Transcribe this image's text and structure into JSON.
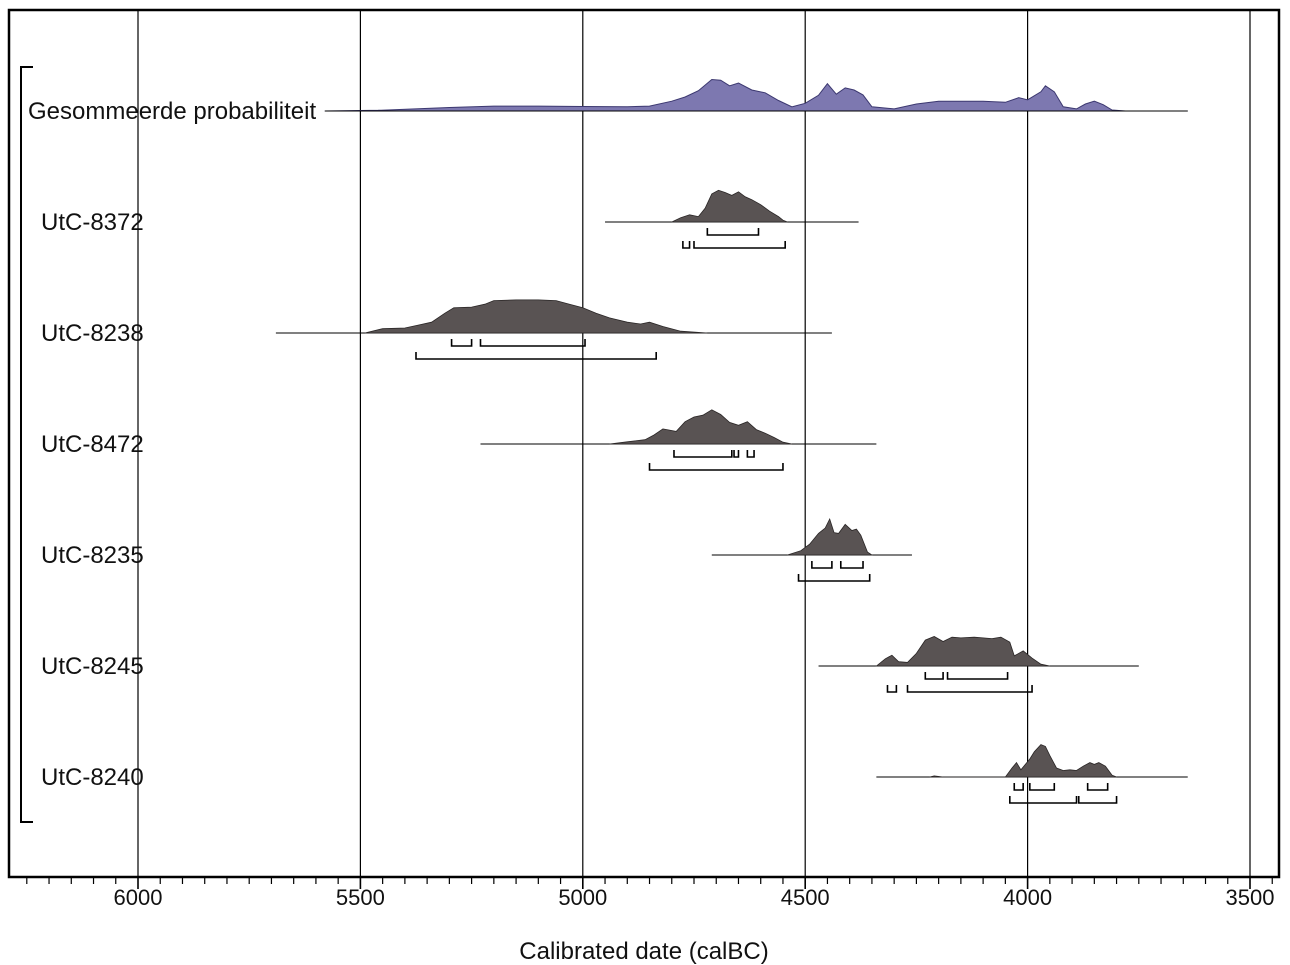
{
  "chart_data": {
    "type": "area",
    "title": "",
    "xlabel": "Calibrated date (calBC)",
    "ylabel": "",
    "x_axis": {
      "reversed": true,
      "min_calBC": 6290,
      "max_calBC": 3430,
      "major_ticks": [
        6000,
        5500,
        5000,
        4500,
        4000,
        3500
      ],
      "minor_tick_step": 50,
      "vertical_gridlines_at": [
        6000,
        5500,
        5000,
        4500,
        4000,
        3500
      ]
    },
    "sum": {
      "name": "Gesommeerde probabiliteit",
      "color": "#7d78b0",
      "stroke": "#3c3870",
      "baseline_range": [
        5580,
        3640
      ],
      "density": [
        [
          5580,
          0
        ],
        [
          5460,
          0.02
        ],
        [
          5300,
          0.1
        ],
        [
          5200,
          0.14
        ],
        [
          5100,
          0.14
        ],
        [
          5000,
          0.13
        ],
        [
          4900,
          0.12
        ],
        [
          4850,
          0.14
        ],
        [
          4800,
          0.28
        ],
        [
          4770,
          0.4
        ],
        [
          4740,
          0.58
        ],
        [
          4710,
          0.9
        ],
        [
          4690,
          0.88
        ],
        [
          4670,
          0.72
        ],
        [
          4650,
          0.8
        ],
        [
          4620,
          0.6
        ],
        [
          4590,
          0.52
        ],
        [
          4560,
          0.3
        ],
        [
          4530,
          0.12
        ],
        [
          4500,
          0.22
        ],
        [
          4470,
          0.45
        ],
        [
          4450,
          0.78
        ],
        [
          4430,
          0.48
        ],
        [
          4410,
          0.66
        ],
        [
          4390,
          0.6
        ],
        [
          4370,
          0.46
        ],
        [
          4350,
          0.12
        ],
        [
          4300,
          0.06
        ],
        [
          4250,
          0.2
        ],
        [
          4200,
          0.28
        ],
        [
          4100,
          0.28
        ],
        [
          4050,
          0.25
        ],
        [
          4020,
          0.38
        ],
        [
          4000,
          0.32
        ],
        [
          3970,
          0.55
        ],
        [
          3960,
          0.72
        ],
        [
          3940,
          0.55
        ],
        [
          3920,
          0.12
        ],
        [
          3890,
          0.06
        ],
        [
          3870,
          0.2
        ],
        [
          3850,
          0.28
        ],
        [
          3830,
          0.18
        ],
        [
          3810,
          0.03
        ],
        [
          3780,
          0
        ],
        [
          3640,
          0
        ]
      ]
    },
    "samples": [
      {
        "name": "UtC-8372",
        "color": "#595353",
        "baseline_range": [
          4950,
          4380
        ],
        "density": [
          [
            4800,
            0
          ],
          [
            4780,
            0.12
          ],
          [
            4760,
            0.2
          ],
          [
            4740,
            0.15
          ],
          [
            4725,
            0.38
          ],
          [
            4710,
            0.78
          ],
          [
            4695,
            0.88
          ],
          [
            4680,
            0.82
          ],
          [
            4665,
            0.74
          ],
          [
            4650,
            0.84
          ],
          [
            4635,
            0.7
          ],
          [
            4620,
            0.62
          ],
          [
            4600,
            0.48
          ],
          [
            4580,
            0.3
          ],
          [
            4560,
            0.15
          ],
          [
            4550,
            0.05
          ],
          [
            4540,
            0
          ]
        ],
        "sigma1_ranges": [
          [
            4720,
            4605
          ]
        ],
        "sigma2_ranges": [
          [
            4775,
            4760
          ],
          [
            4750,
            4545
          ]
        ]
      },
      {
        "name": "UtC-8238",
        "color": "#595353",
        "baseline_range": [
          5690,
          4440
        ],
        "density": [
          [
            5490,
            0
          ],
          [
            5450,
            0.12
          ],
          [
            5400,
            0.14
          ],
          [
            5370,
            0.22
          ],
          [
            5340,
            0.3
          ],
          [
            5310,
            0.55
          ],
          [
            5290,
            0.7
          ],
          [
            5250,
            0.72
          ],
          [
            5220,
            0.8
          ],
          [
            5200,
            0.9
          ],
          [
            5150,
            0.92
          ],
          [
            5100,
            0.92
          ],
          [
            5060,
            0.9
          ],
          [
            5030,
            0.8
          ],
          [
            5000,
            0.7
          ],
          [
            4970,
            0.55
          ],
          [
            4940,
            0.42
          ],
          [
            4900,
            0.3
          ],
          [
            4870,
            0.25
          ],
          [
            4850,
            0.3
          ],
          [
            4820,
            0.18
          ],
          [
            4780,
            0.05
          ],
          [
            4720,
            0
          ]
        ],
        "sigma1_ranges": [
          [
            5295,
            5250
          ],
          [
            5230,
            4995
          ]
        ],
        "sigma2_ranges": [
          [
            5375,
            4835
          ]
        ]
      },
      {
        "name": "UtC-8472",
        "color": "#595353",
        "baseline_range": [
          5230,
          4340
        ],
        "density": [
          [
            4940,
            0
          ],
          [
            4900,
            0.06
          ],
          [
            4860,
            0.12
          ],
          [
            4840,
            0.25
          ],
          [
            4820,
            0.42
          ],
          [
            4790,
            0.35
          ],
          [
            4770,
            0.62
          ],
          [
            4750,
            0.75
          ],
          [
            4730,
            0.8
          ],
          [
            4710,
            0.95
          ],
          [
            4690,
            0.82
          ],
          [
            4670,
            0.6
          ],
          [
            4650,
            0.52
          ],
          [
            4630,
            0.62
          ],
          [
            4610,
            0.4
          ],
          [
            4590,
            0.3
          ],
          [
            4570,
            0.18
          ],
          [
            4550,
            0.05
          ],
          [
            4530,
            0
          ]
        ],
        "sigma1_ranges": [
          [
            4795,
            4665
          ],
          [
            4660,
            4650
          ],
          [
            4630,
            4615
          ]
        ],
        "sigma2_ranges": [
          [
            4850,
            4550
          ]
        ]
      },
      {
        "name": "UtC-8235",
        "color": "#595353",
        "baseline_range": [
          4710,
          4260
        ],
        "density": [
          [
            4540,
            0
          ],
          [
            4510,
            0.12
          ],
          [
            4490,
            0.3
          ],
          [
            4470,
            0.6
          ],
          [
            4455,
            0.75
          ],
          [
            4445,
            1.0
          ],
          [
            4435,
            0.62
          ],
          [
            4425,
            0.6
          ],
          [
            4410,
            0.85
          ],
          [
            4395,
            0.68
          ],
          [
            4385,
            0.72
          ],
          [
            4375,
            0.55
          ],
          [
            4360,
            0.08
          ],
          [
            4350,
            0
          ]
        ],
        "sigma1_ranges": [
          [
            4485,
            4440
          ],
          [
            4420,
            4370
          ]
        ],
        "sigma2_ranges": [
          [
            4515,
            4355
          ]
        ]
      },
      {
        "name": "UtC-8245",
        "color": "#595353",
        "baseline_range": [
          4470,
          3750
        ],
        "density": [
          [
            4340,
            0
          ],
          [
            4320,
            0.2
          ],
          [
            4305,
            0.3
          ],
          [
            4290,
            0.12
          ],
          [
            4270,
            0.1
          ],
          [
            4250,
            0.35
          ],
          [
            4230,
            0.72
          ],
          [
            4210,
            0.82
          ],
          [
            4190,
            0.68
          ],
          [
            4170,
            0.8
          ],
          [
            4150,
            0.78
          ],
          [
            4120,
            0.8
          ],
          [
            4100,
            0.78
          ],
          [
            4080,
            0.76
          ],
          [
            4060,
            0.8
          ],
          [
            4040,
            0.66
          ],
          [
            4030,
            0.28
          ],
          [
            4010,
            0.42
          ],
          [
            3990,
            0.22
          ],
          [
            3970,
            0.05
          ],
          [
            3950,
            0
          ]
        ],
        "sigma1_ranges": [
          [
            4230,
            4190
          ],
          [
            4180,
            4045
          ]
        ],
        "sigma2_ranges": [
          [
            4315,
            4295
          ],
          [
            4270,
            3990
          ]
        ]
      },
      {
        "name": "UtC-8240",
        "color": "#595353",
        "baseline_range": [
          4340,
          3640
        ],
        "density": [
          [
            4220,
            0
          ],
          [
            4210,
            0.03
          ],
          [
            4190,
            0
          ],
          [
            4050,
            0
          ],
          [
            4035,
            0.25
          ],
          [
            4025,
            0.4
          ],
          [
            4015,
            0.2
          ],
          [
            3995,
            0.5
          ],
          [
            3985,
            0.7
          ],
          [
            3970,
            0.9
          ],
          [
            3960,
            0.85
          ],
          [
            3950,
            0.6
          ],
          [
            3935,
            0.25
          ],
          [
            3920,
            0.18
          ],
          [
            3905,
            0.2
          ],
          [
            3890,
            0.18
          ],
          [
            3875,
            0.3
          ],
          [
            3860,
            0.4
          ],
          [
            3850,
            0.35
          ],
          [
            3840,
            0.4
          ],
          [
            3825,
            0.3
          ],
          [
            3810,
            0.05
          ],
          [
            3800,
            0
          ]
        ],
        "sigma1_ranges": [
          [
            4030,
            4010
          ],
          [
            3995,
            3940
          ],
          [
            3865,
            3820
          ]
        ],
        "sigma2_ranges": [
          [
            4040,
            3890
          ],
          [
            3885,
            3800
          ]
        ]
      }
    ]
  }
}
